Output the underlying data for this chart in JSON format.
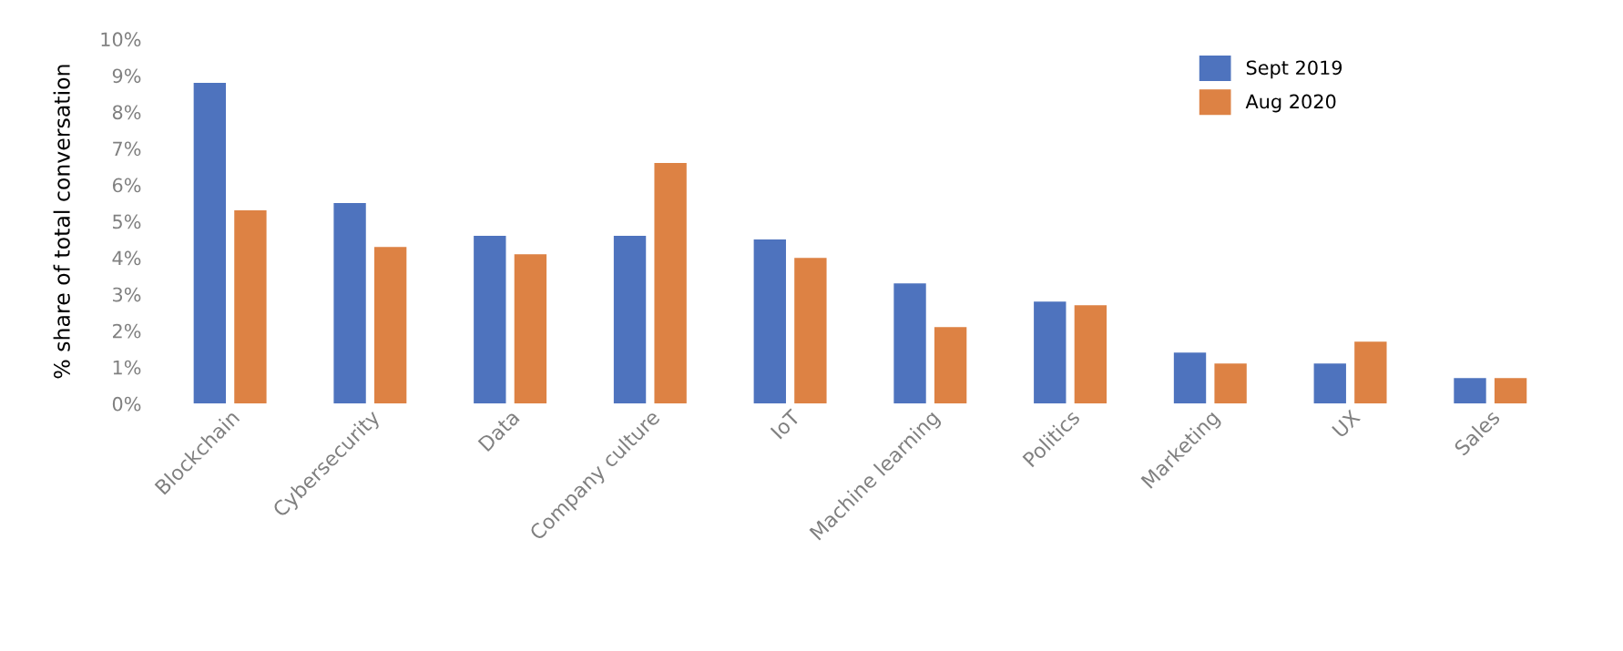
{
  "chart_data": {
    "type": "bar",
    "ylabel": "% share of total conversation",
    "categories": [
      "Blockchain",
      "Cybersecurity",
      "Data",
      "Company culture",
      "IoT",
      "Machine learning",
      "Politics",
      "Marketing",
      "UX",
      "Sales"
    ],
    "series": [
      {
        "name": "Sept 2019",
        "color": "#4e73be",
        "values": [
          8.8,
          5.5,
          4.6,
          4.6,
          4.5,
          3.3,
          2.8,
          1.4,
          1.1,
          0.7
        ]
      },
      {
        "name": "Aug 2020",
        "color": "#dd8244",
        "values": [
          5.3,
          4.3,
          4.1,
          6.6,
          4.0,
          2.1,
          2.7,
          1.1,
          1.7,
          0.7
        ]
      }
    ],
    "ylim": [
      0,
      10
    ],
    "yticks": [
      {
        "value": 0,
        "label": "0%"
      },
      {
        "value": 1,
        "label": "1%"
      },
      {
        "value": 2,
        "label": "2%"
      },
      {
        "value": 3,
        "label": "3%"
      },
      {
        "value": 4,
        "label": "4%"
      },
      {
        "value": 5,
        "label": "5%"
      },
      {
        "value": 6,
        "label": "6%"
      },
      {
        "value": 7,
        "label": "7%"
      },
      {
        "value": 8,
        "label": "8%"
      },
      {
        "value": 9,
        "label": "9%"
      },
      {
        "value": 10,
        "label": "10%"
      }
    ],
    "grid": false,
    "legend": "top right"
  }
}
